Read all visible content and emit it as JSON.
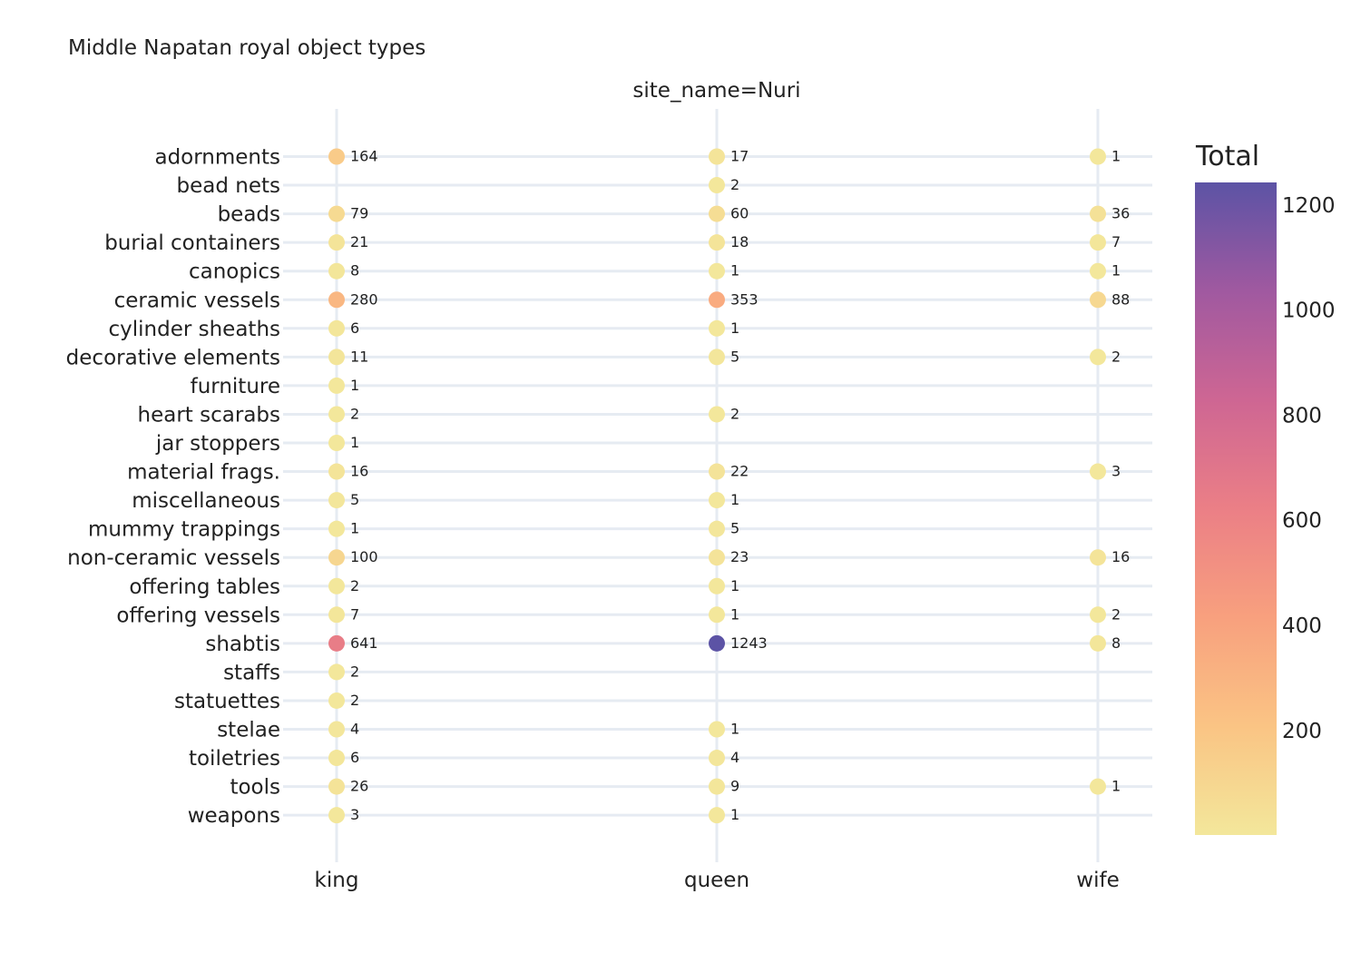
{
  "chart_data": {
    "type": "scatter",
    "title": "Middle Napatan royal object types",
    "facet_label": "site_name=Nuri",
    "x_categories": [
      "king",
      "queen",
      "wife"
    ],
    "y_categories": [
      "adornments",
      "bead nets",
      "beads",
      "burial containers",
      "canopics",
      "ceramic vessels",
      "cylinder sheaths",
      "decorative elements",
      "furniture",
      "heart scarabs",
      "jar stoppers",
      "material frags.",
      "miscellaneous",
      "mummy trappings",
      "non-ceramic vessels",
      "offering tables",
      "offering vessels",
      "shabtis",
      "staffs",
      "statuettes",
      "stelae",
      "toiletries",
      "tools",
      "weapons"
    ],
    "points": [
      {
        "x": "king",
        "y": "adornments",
        "value": 164
      },
      {
        "x": "queen",
        "y": "adornments",
        "value": 17
      },
      {
        "x": "wife",
        "y": "adornments",
        "value": 1
      },
      {
        "x": "queen",
        "y": "bead nets",
        "value": 2
      },
      {
        "x": "king",
        "y": "beads",
        "value": 79
      },
      {
        "x": "queen",
        "y": "beads",
        "value": 60
      },
      {
        "x": "wife",
        "y": "beads",
        "value": 36
      },
      {
        "x": "king",
        "y": "burial containers",
        "value": 21
      },
      {
        "x": "queen",
        "y": "burial containers",
        "value": 18
      },
      {
        "x": "wife",
        "y": "burial containers",
        "value": 7
      },
      {
        "x": "king",
        "y": "canopics",
        "value": 8
      },
      {
        "x": "queen",
        "y": "canopics",
        "value": 1
      },
      {
        "x": "wife",
        "y": "canopics",
        "value": 1
      },
      {
        "x": "king",
        "y": "ceramic vessels",
        "value": 280
      },
      {
        "x": "queen",
        "y": "ceramic vessels",
        "value": 353
      },
      {
        "x": "wife",
        "y": "ceramic vessels",
        "value": 88
      },
      {
        "x": "king",
        "y": "cylinder sheaths",
        "value": 6
      },
      {
        "x": "queen",
        "y": "cylinder sheaths",
        "value": 1
      },
      {
        "x": "king",
        "y": "decorative elements",
        "value": 11
      },
      {
        "x": "queen",
        "y": "decorative elements",
        "value": 5
      },
      {
        "x": "wife",
        "y": "decorative elements",
        "value": 2
      },
      {
        "x": "king",
        "y": "furniture",
        "value": 1
      },
      {
        "x": "king",
        "y": "heart scarabs",
        "value": 2
      },
      {
        "x": "queen",
        "y": "heart scarabs",
        "value": 2
      },
      {
        "x": "king",
        "y": "jar stoppers",
        "value": 1
      },
      {
        "x": "king",
        "y": "material frags.",
        "value": 16
      },
      {
        "x": "queen",
        "y": "material frags.",
        "value": 22
      },
      {
        "x": "wife",
        "y": "material frags.",
        "value": 3
      },
      {
        "x": "king",
        "y": "miscellaneous",
        "value": 5
      },
      {
        "x": "queen",
        "y": "miscellaneous",
        "value": 1
      },
      {
        "x": "king",
        "y": "mummy trappings",
        "value": 1
      },
      {
        "x": "queen",
        "y": "mummy trappings",
        "value": 5
      },
      {
        "x": "king",
        "y": "non-ceramic vessels",
        "value": 100
      },
      {
        "x": "queen",
        "y": "non-ceramic vessels",
        "value": 23
      },
      {
        "x": "wife",
        "y": "non-ceramic vessels",
        "value": 16
      },
      {
        "x": "king",
        "y": "offering tables",
        "value": 2
      },
      {
        "x": "queen",
        "y": "offering tables",
        "value": 1
      },
      {
        "x": "king",
        "y": "offering vessels",
        "value": 7
      },
      {
        "x": "queen",
        "y": "offering vessels",
        "value": 1
      },
      {
        "x": "wife",
        "y": "offering vessels",
        "value": 2
      },
      {
        "x": "king",
        "y": "shabtis",
        "value": 641
      },
      {
        "x": "queen",
        "y": "shabtis",
        "value": 1243
      },
      {
        "x": "wife",
        "y": "shabtis",
        "value": 8
      },
      {
        "x": "king",
        "y": "staffs",
        "value": 2
      },
      {
        "x": "king",
        "y": "statuettes",
        "value": 2
      },
      {
        "x": "king",
        "y": "stelae",
        "value": 4
      },
      {
        "x": "queen",
        "y": "stelae",
        "value": 1
      },
      {
        "x": "king",
        "y": "toiletries",
        "value": 6
      },
      {
        "x": "queen",
        "y": "toiletries",
        "value": 4
      },
      {
        "x": "king",
        "y": "tools",
        "value": 26
      },
      {
        "x": "queen",
        "y": "tools",
        "value": 9
      },
      {
        "x": "wife",
        "y": "tools",
        "value": 1
      },
      {
        "x": "king",
        "y": "weapons",
        "value": 3
      },
      {
        "x": "queen",
        "y": "weapons",
        "value": 1
      }
    ],
    "colorbar": {
      "title": "Total",
      "range": [
        1,
        1243
      ],
      "ticks": [
        200,
        400,
        600,
        800,
        1000,
        1200
      ],
      "colorscale": [
        "#f3e79b",
        "#fac484",
        "#f8a07e",
        "#eb7f86",
        "#ce6693",
        "#a059a0",
        "#5c53a5"
      ]
    },
    "grid": true,
    "legend": "colorbar right"
  }
}
